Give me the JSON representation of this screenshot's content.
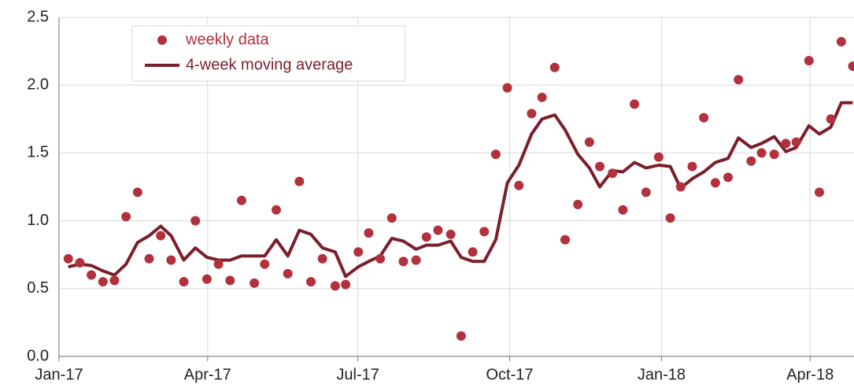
{
  "chart_data": {
    "type": "line",
    "x": [
      0.8,
      1.8,
      2.8,
      3.8,
      4.8,
      5.8,
      6.8,
      7.8,
      8.8,
      9.7,
      10.8,
      11.8,
      12.8,
      13.8,
      14.8,
      15.8,
      16.9,
      17.8,
      18.8,
      19.8,
      20.8,
      21.8,
      22.8,
      23.9,
      24.8,
      25.9,
      26.8,
      27.8,
      28.8,
      29.8,
      30.9,
      31.8,
      32.8,
      33.9,
      34.8,
      35.8,
      36.8,
      37.8,
      38.8,
      39.8,
      40.9,
      41.8,
      42.9,
      43.8,
      44.9,
      45.9,
      46.8,
      47.9,
      48.8,
      49.8,
      50.8,
      51.9,
      52.9,
      53.8,
      54.8,
      55.8,
      56.8,
      57.9,
      58.8,
      59.9,
      60.8,
      61.9,
      62.9,
      63.8,
      64.9,
      65.8,
      66.8,
      67.7,
      68.7
    ],
    "series": [
      {
        "name": "weekly data",
        "type": "scatter",
        "color": "#b3303d",
        "values": [
          0.72,
          0.69,
          0.6,
          0.55,
          0.56,
          1.03,
          1.21,
          0.72,
          0.89,
          0.71,
          0.55,
          1.0,
          0.57,
          0.68,
          0.56,
          1.15,
          0.54,
          0.68,
          1.08,
          0.61,
          1.29,
          0.55,
          0.72,
          0.52,
          0.53,
          0.77,
          0.91,
          0.72,
          1.02,
          0.7,
          0.71,
          0.88,
          0.93,
          0.9,
          0.15,
          0.77,
          0.92,
          1.49,
          1.98,
          1.26,
          1.79,
          1.91,
          2.13,
          0.86,
          1.12,
          1.58,
          1.4,
          1.35,
          1.08,
          1.86,
          1.21,
          1.47,
          1.02,
          1.25,
          1.4,
          1.76,
          1.28,
          1.32,
          2.04,
          1.44,
          1.5,
          1.49,
          1.57,
          1.58,
          2.18,
          1.21,
          1.75,
          2.32,
          2.14
        ]
      },
      {
        "name": "4-week moving average",
        "type": "line",
        "color": "#7a1f2b",
        "values": [
          0.66,
          0.68,
          0.67,
          0.63,
          0.6,
          0.68,
          0.84,
          0.89,
          0.96,
          0.89,
          0.71,
          0.8,
          0.73,
          0.71,
          0.71,
          0.74,
          0.74,
          0.74,
          0.86,
          0.74,
          0.93,
          0.9,
          0.8,
          0.77,
          0.59,
          0.66,
          0.7,
          0.74,
          0.87,
          0.85,
          0.79,
          0.82,
          0.82,
          0.85,
          0.73,
          0.7,
          0.7,
          0.86,
          1.28,
          1.41,
          1.64,
          1.75,
          1.78,
          1.67,
          1.49,
          1.39,
          1.25,
          1.37,
          1.36,
          1.43,
          1.39,
          1.41,
          1.4,
          1.24,
          1.31,
          1.36,
          1.43,
          1.46,
          1.61,
          1.54,
          1.57,
          1.62,
          1.51,
          1.54,
          1.7,
          1.64,
          1.69,
          1.87,
          1.87
        ]
      }
    ],
    "xlim": [
      0,
      68.8
    ],
    "xticks": [
      {
        "value": 0,
        "label": "Jan-17"
      },
      {
        "value": 12.86,
        "label": "Apr-17"
      },
      {
        "value": 25.86,
        "label": "Jul-17"
      },
      {
        "value": 39,
        "label": "Oct-17"
      },
      {
        "value": 52.14,
        "label": "Jan-18"
      },
      {
        "value": 65,
        "label": "Apr-18"
      }
    ],
    "ylim": [
      0,
      2.5
    ],
    "yticks": [
      {
        "value": 0,
        "label": "0.0"
      },
      0.5,
      {
        "value": 1,
        "label": "1.0"
      },
      1.5,
      {
        "value": 2,
        "label": "2.0"
      },
      2.5
    ],
    "grid": true,
    "legend": "upper left"
  }
}
